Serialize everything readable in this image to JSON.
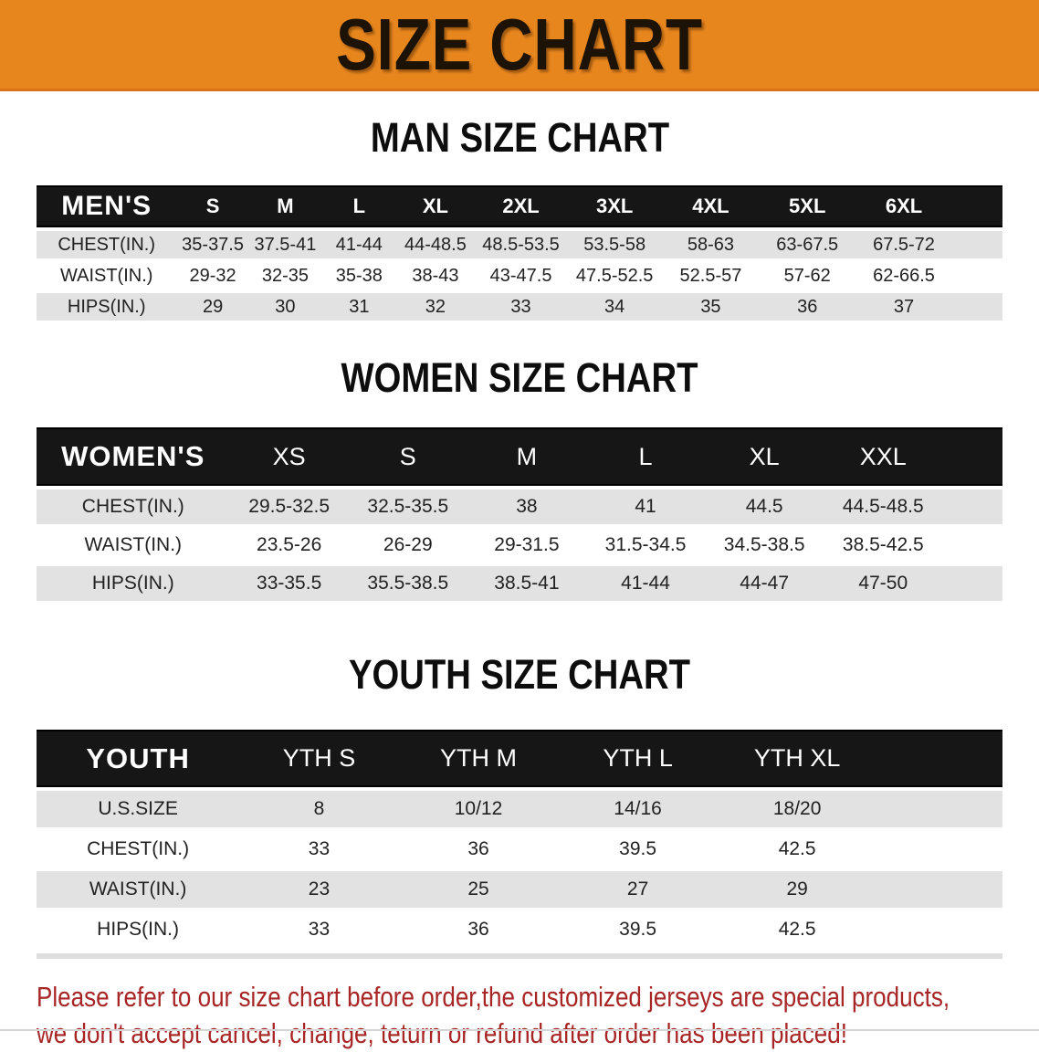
{
  "banner": {
    "title": "SIZE CHART"
  },
  "colors": {
    "banner_bg": "#E8861E",
    "banner_edge": "#D8731A",
    "header_bar": "#161616",
    "row_stripe": "#E2E2E2",
    "note_red": "#A82525"
  },
  "sections": {
    "men": {
      "heading": "MAN SIZE CHART",
      "table": {
        "label": "MEN'S",
        "sizes": [
          "S",
          "M",
          "L",
          "XL",
          "2XL",
          "3XL",
          "4XL",
          "5XL",
          "6XL"
        ],
        "rows": [
          {
            "label": "CHEST(IN.)",
            "values": [
              "35-37.5",
              "37.5-41",
              "41-44",
              "44-48.5",
              "48.5-53.5",
              "53.5-58",
              "58-63",
              "63-67.5",
              "67.5-72"
            ]
          },
          {
            "label": "WAIST(IN.)",
            "values": [
              "29-32",
              "32-35",
              "35-38",
              "38-43",
              "43-47.5",
              "47.5-52.5",
              "52.5-57",
              "57-62",
              "62-66.5"
            ]
          },
          {
            "label": "HIPS(IN.)",
            "values": [
              "29",
              "30",
              "31",
              "32",
              "33",
              "34",
              "35",
              "36",
              "37"
            ]
          }
        ]
      }
    },
    "women": {
      "heading": "WOMEN SIZE CHART",
      "table": {
        "label": "WOMEN'S",
        "sizes": [
          "XS",
          "S",
          "M",
          "L",
          "XL",
          "XXL"
        ],
        "rows": [
          {
            "label": "CHEST(IN.)",
            "values": [
              "29.5-32.5",
              "32.5-35.5",
              "38",
              "41",
              "44.5",
              "44.5-48.5"
            ]
          },
          {
            "label": "WAIST(IN.)",
            "values": [
              "23.5-26",
              "26-29",
              "29-31.5",
              "31.5-34.5",
              "34.5-38.5",
              "38.5-42.5"
            ]
          },
          {
            "label": "HIPS(IN.)",
            "values": [
              "33-35.5",
              "35.5-38.5",
              "38.5-41",
              "41-44",
              "44-47",
              "47-50"
            ]
          }
        ]
      }
    },
    "youth": {
      "heading": "YOUTH SIZE CHART",
      "table": {
        "label": "YOUTH",
        "sizes": [
          "YTH S",
          "YTH M",
          "YTH L",
          "YTH XL"
        ],
        "rows": [
          {
            "label": "U.S.SIZE",
            "values": [
              "8",
              "10/12",
              "14/16",
              "18/20"
            ]
          },
          {
            "label": "CHEST(IN.)",
            "values": [
              "33",
              "36",
              "39.5",
              "42.5"
            ]
          },
          {
            "label": "WAIST(IN.)",
            "values": [
              "23",
              "25",
              "27",
              "29"
            ]
          },
          {
            "label": "HIPS(IN.)",
            "values": [
              "33",
              "36",
              "39.5",
              "42.5"
            ]
          }
        ]
      }
    }
  },
  "footer_note": {
    "line1": "Please refer to our size chart before order,the customized jerseys are special products,",
    "line2": "we don't accept cancel, change, teturn or refund after order has been placed!"
  }
}
